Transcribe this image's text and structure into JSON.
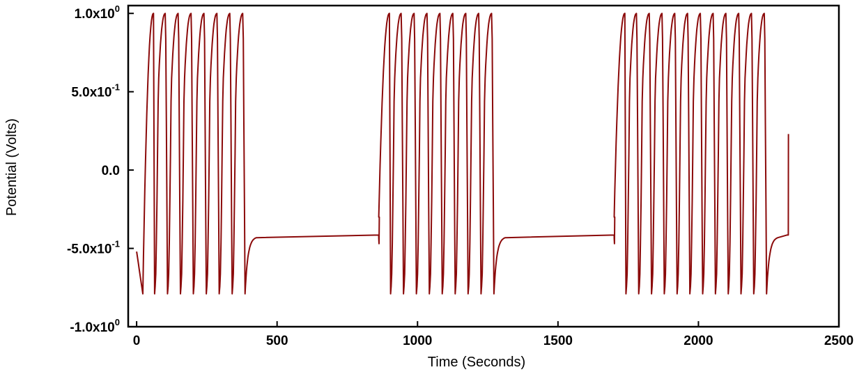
{
  "chart_data": {
    "type": "line",
    "title": "",
    "xlabel": "Time (Seconds)",
    "ylabel": "Potential (Volts)",
    "xlim": [
      -30,
      2500
    ],
    "ylim": [
      -1.0,
      1.05
    ],
    "xticks": [
      {
        "value": 0,
        "label": "0"
      },
      {
        "value": 500,
        "label": "500"
      },
      {
        "value": 1000,
        "label": "1000"
      },
      {
        "value": 1500,
        "label": "1500"
      },
      {
        "value": 2000,
        "label": "2000"
      },
      {
        "value": 2500,
        "label": "2500"
      }
    ],
    "yticks": [
      {
        "value": 1.0,
        "mantissa": "1.0x10",
        "exp": "0"
      },
      {
        "value": 0.5,
        "mantissa": "5.0x10",
        "exp": "-1"
      },
      {
        "value": 0.0,
        "mantissa": "0.0",
        "exp": ""
      },
      {
        "value": -0.5,
        "mantissa": "-5.0x10",
        "exp": "-1"
      },
      {
        "value": -1.0,
        "mantissa": "-1.0x10",
        "exp": "0"
      }
    ],
    "grid": false,
    "legend": "none",
    "color": "#8b0a0a",
    "oscillation": {
      "max": 1.0,
      "min": -0.79,
      "steady_state": -0.415
    },
    "bursts": [
      {
        "start": 0,
        "end": 400,
        "period": 46,
        "tail_end": 862
      },
      {
        "start": 862,
        "end": 1290,
        "period": 46,
        "tail_end": 1700
      },
      {
        "start": 1700,
        "end": 2265,
        "period": 45.5,
        "tail_end": 2315
      }
    ],
    "final_value": 0.23,
    "final_time": 2320
  }
}
